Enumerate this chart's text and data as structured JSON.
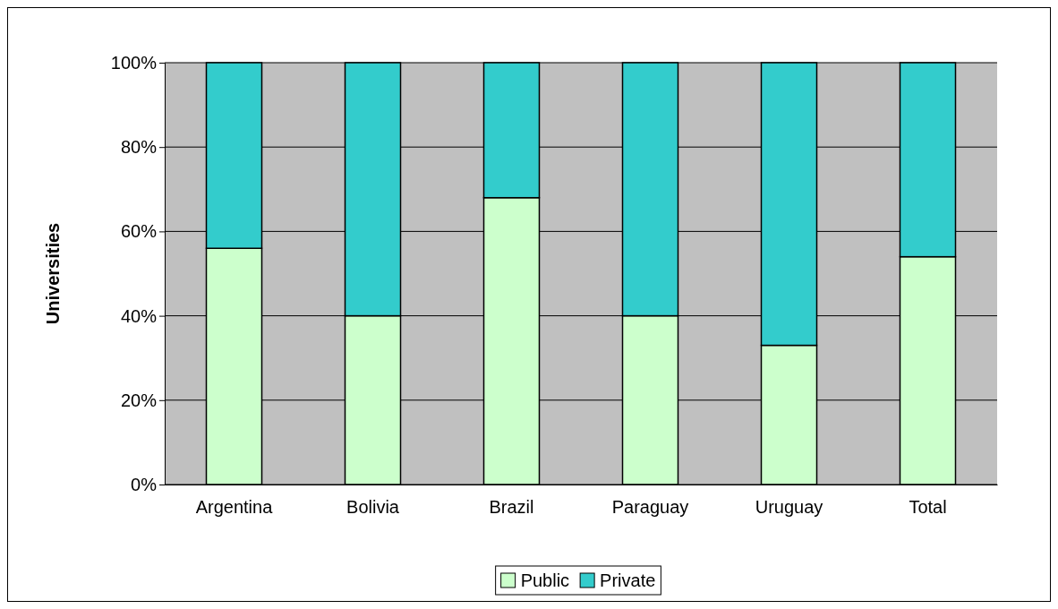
{
  "chart_data": {
    "type": "bar",
    "stacked": true,
    "ylabel": "Universities",
    "categories": [
      "Argentina",
      "Bolivia",
      "Brazil",
      "Paraguay",
      "Uruguay",
      "Total"
    ],
    "series": [
      {
        "name": "Public",
        "color": "#ccffcc",
        "values": [
          56,
          40,
          68,
          40,
          33,
          54
        ]
      },
      {
        "name": "Private",
        "color": "#33cccc",
        "values": [
          44,
          60,
          32,
          60,
          67,
          46
        ]
      }
    ],
    "ylim": [
      0,
      100
    ],
    "yticks": [
      {
        "value": 0,
        "label": "0%"
      },
      {
        "value": 20,
        "label": "20%"
      },
      {
        "value": 40,
        "label": "40%"
      },
      {
        "value": 60,
        "label": "60%"
      },
      {
        "value": 80,
        "label": "80%"
      },
      {
        "value": 100,
        "label": "100%"
      }
    ],
    "grid": "y",
    "legend": "bottom"
  }
}
